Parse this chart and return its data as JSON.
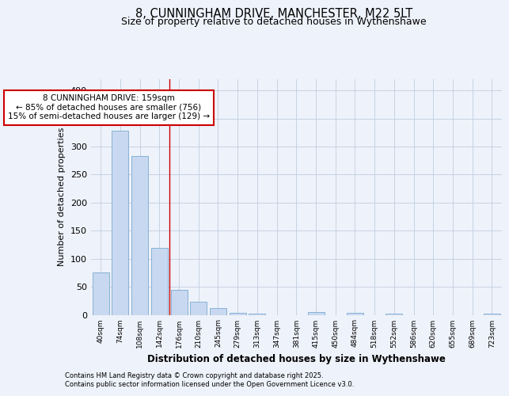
{
  "title_line1": "8, CUNNINGHAM DRIVE, MANCHESTER, M22 5LT",
  "title_line2": "Size of property relative to detached houses in Wythenshawe",
  "xlabel": "Distribution of detached houses by size in Wythenshawe",
  "ylabel": "Number of detached properties",
  "categories": [
    "40sqm",
    "74sqm",
    "108sqm",
    "142sqm",
    "176sqm",
    "210sqm",
    "245sqm",
    "279sqm",
    "313sqm",
    "347sqm",
    "381sqm",
    "415sqm",
    "450sqm",
    "484sqm",
    "518sqm",
    "552sqm",
    "586sqm",
    "620sqm",
    "655sqm",
    "689sqm",
    "723sqm"
  ],
  "values": [
    75,
    328,
    283,
    120,
    44,
    23,
    12,
    4,
    2,
    0,
    0,
    5,
    0,
    3,
    0,
    2,
    0,
    0,
    0,
    0,
    2
  ],
  "bar_color": "#c8d8f0",
  "bar_edge_color": "#7aaad0",
  "vline_x": 3.5,
  "vline_color": "#cc0000",
  "annotation_text": "8 CUNNINGHAM DRIVE: 159sqm\n← 85% of detached houses are smaller (756)\n15% of semi-detached houses are larger (129) →",
  "annotation_box_color": "#ffffff",
  "annotation_box_edge": "#cc0000",
  "ylim": [
    0,
    420
  ],
  "yticks": [
    0,
    50,
    100,
    150,
    200,
    250,
    300,
    350,
    400
  ],
  "background_color": "#eef2fa",
  "plot_background": "#eef2fa",
  "footer_line1": "Contains HM Land Registry data © Crown copyright and database right 2025.",
  "footer_line2": "Contains public sector information licensed under the Open Government Licence v3.0."
}
